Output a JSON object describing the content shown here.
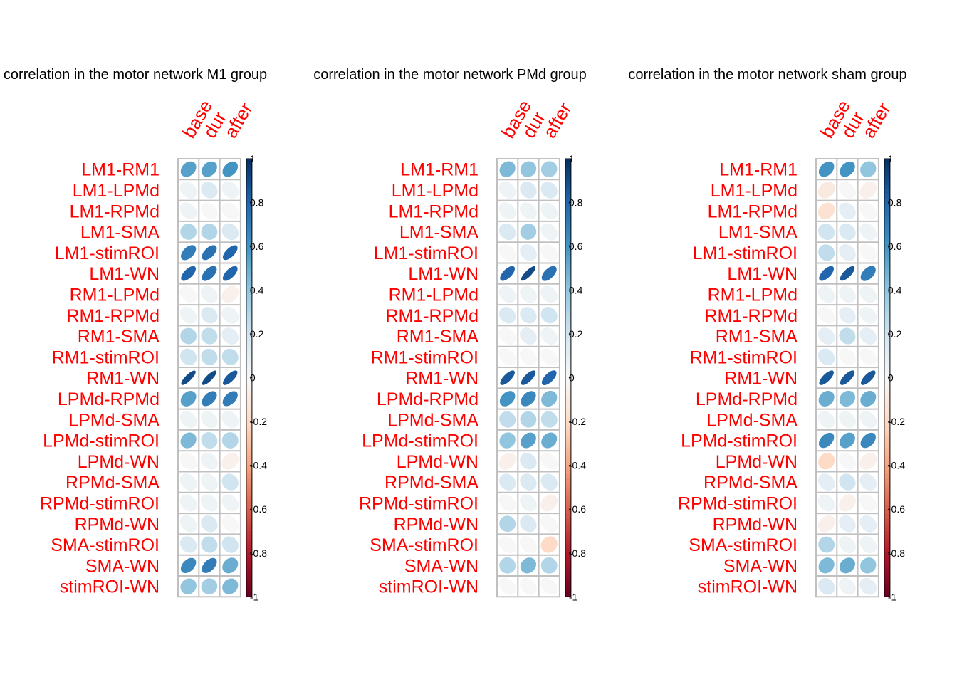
{
  "colors": {
    "label": "#ff0000",
    "grid": "#c0c0c0",
    "text": "#000000",
    "colorbar_stops": [
      "#67001f",
      "#b2182b",
      "#d6604d",
      "#f4a582",
      "#fddbc7",
      "#f7f7f7",
      "#d1e5f0",
      "#92c5de",
      "#4393c3",
      "#2166ac",
      "#053061"
    ]
  },
  "chart_data": [
    {
      "type": "heatmap",
      "title": "correlation in the motor network M1 group",
      "columns": [
        "base",
        "dur",
        "after"
      ],
      "rows": [
        "LM1-RM1",
        "LM1-LPMd",
        "LM1-RPMd",
        "LM1-SMA",
        "LM1-stimROI",
        "LM1-WN",
        "RM1-LPMd",
        "RM1-RPMd",
        "RM1-SMA",
        "RM1-stimROI",
        "RM1-WN",
        "LPMd-RPMd",
        "LPMd-SMA",
        "LPMd-stimROI",
        "LPMd-WN",
        "RPMd-SMA",
        "RPMd-stimROI",
        "RPMd-WN",
        "SMA-stimROI",
        "SMA-WN",
        "stimROI-WN"
      ],
      "values": [
        [
          0.55,
          0.55,
          0.6
        ],
        [
          0.05,
          0.15,
          0.05
        ],
        [
          0.05,
          0.0,
          0.0
        ],
        [
          0.3,
          0.3,
          0.15
        ],
        [
          0.7,
          0.75,
          0.8
        ],
        [
          0.8,
          0.75,
          0.8
        ],
        [
          0.0,
          0.05,
          -0.05
        ],
        [
          0.05,
          0.15,
          0.05
        ],
        [
          0.3,
          0.25,
          0.1
        ],
        [
          0.2,
          0.25,
          0.25
        ],
        [
          0.9,
          0.9,
          0.85
        ],
        [
          0.55,
          0.7,
          0.7
        ],
        [
          0.05,
          0.05,
          0.05
        ],
        [
          0.45,
          0.25,
          0.3
        ],
        [
          0.0,
          0.05,
          -0.05
        ],
        [
          0.05,
          0.05,
          0.2
        ],
        [
          0.05,
          0.05,
          0.05
        ],
        [
          0.05,
          0.15,
          0.0
        ],
        [
          0.15,
          0.25,
          0.2
        ],
        [
          0.65,
          0.7,
          0.5
        ],
        [
          0.4,
          0.35,
          0.45
        ]
      ],
      "colorbar_ticks": [
        "1",
        "0.8",
        "0.6",
        "0.4",
        "0.2",
        "0",
        "-0.2",
        "-0.4",
        "-0.6",
        "-0.8",
        "-1"
      ]
    },
    {
      "type": "heatmap",
      "title": "correlation in the motor network PMd group",
      "columns": [
        "base",
        "dur",
        "after"
      ],
      "rows": [
        "LM1-RM1",
        "LM1-LPMd",
        "LM1-RPMd",
        "LM1-SMA",
        "LM1-stimROI",
        "LM1-WN",
        "RM1-LPMd",
        "RM1-RPMd",
        "RM1-SMA",
        "RM1-stimROI",
        "RM1-WN",
        "LPMd-RPMd",
        "LPMd-SMA",
        "LPMd-stimROI",
        "LPMd-WN",
        "RPMd-SMA",
        "RPMd-stimROI",
        "RPMd-WN",
        "SMA-stimROI",
        "SMA-WN",
        "stimROI-WN"
      ],
      "values": [
        [
          0.45,
          0.4,
          0.35
        ],
        [
          0.05,
          0.15,
          0.15
        ],
        [
          0.05,
          0.05,
          0.05
        ],
        [
          0.15,
          0.35,
          0.05
        ],
        [
          0.0,
          0.1,
          0.0
        ],
        [
          0.8,
          0.9,
          0.75
        ],
        [
          0.05,
          0.05,
          0.05
        ],
        [
          0.15,
          0.15,
          0.2
        ],
        [
          0.0,
          0.1,
          0.05
        ],
        [
          0.0,
          0.0,
          0.0
        ],
        [
          0.85,
          0.85,
          0.8
        ],
        [
          0.6,
          0.65,
          0.45
        ],
        [
          0.25,
          0.3,
          0.25
        ],
        [
          0.4,
          0.55,
          0.5
        ],
        [
          -0.05,
          0.15,
          0.0
        ],
        [
          0.15,
          0.15,
          0.15
        ],
        [
          0.0,
          0.05,
          -0.05
        ],
        [
          0.3,
          0.15,
          0.0
        ],
        [
          0.0,
          0.0,
          -0.2
        ],
        [
          0.3,
          0.45,
          0.3
        ],
        [
          0.0,
          0.0,
          0.0
        ]
      ],
      "colorbar_ticks": [
        "1",
        "0.8",
        "0.6",
        "0.4",
        "0.2",
        "0",
        "-0.2",
        "-0.4",
        "-0.6",
        "-0.8",
        "-1"
      ]
    },
    {
      "type": "heatmap",
      "title": "correlation in the motor network sham group",
      "columns": [
        "base",
        "dur",
        "after"
      ],
      "rows": [
        "LM1-RM1",
        "LM1-LPMd",
        "LM1-RPMd",
        "LM1-SMA",
        "LM1-stimROI",
        "LM1-WN",
        "RM1-LPMd",
        "RM1-RPMd",
        "RM1-SMA",
        "RM1-stimROI",
        "RM1-WN",
        "LPMd-RPMd",
        "LPMd-SMA",
        "LPMd-stimROI",
        "LPMd-WN",
        "RPMd-SMA",
        "RPMd-stimROI",
        "RPMd-WN",
        "SMA-stimROI",
        "SMA-WN",
        "stimROI-WN"
      ],
      "values": [
        [
          0.6,
          0.6,
          0.4
        ],
        [
          -0.1,
          0.0,
          -0.05
        ],
        [
          -0.15,
          0.1,
          0.0
        ],
        [
          0.2,
          0.15,
          0.05
        ],
        [
          0.25,
          0.1,
          0.0
        ],
        [
          0.8,
          0.85,
          0.7
        ],
        [
          0.05,
          0.05,
          0.05
        ],
        [
          0.0,
          0.1,
          0.05
        ],
        [
          0.1,
          0.25,
          0.1
        ],
        [
          0.15,
          0.0,
          0.0
        ],
        [
          0.85,
          0.85,
          0.85
        ],
        [
          0.5,
          0.45,
          0.5
        ],
        [
          0.05,
          0.05,
          0.05
        ],
        [
          0.65,
          0.55,
          0.65
        ],
        [
          -0.2,
          0.0,
          -0.05
        ],
        [
          0.1,
          0.2,
          0.1
        ],
        [
          0.05,
          -0.05,
          0.0
        ],
        [
          -0.05,
          0.1,
          0.1
        ],
        [
          0.3,
          0.05,
          0.05
        ],
        [
          0.45,
          0.5,
          0.4
        ],
        [
          0.15,
          0.05,
          0.1
        ]
      ],
      "colorbar_ticks": [
        "1",
        "0.8",
        "0.6",
        "0.4",
        "0.2",
        "0",
        "-0.2",
        "-0.4",
        "-0.6",
        "-0.8",
        "-1"
      ]
    }
  ]
}
